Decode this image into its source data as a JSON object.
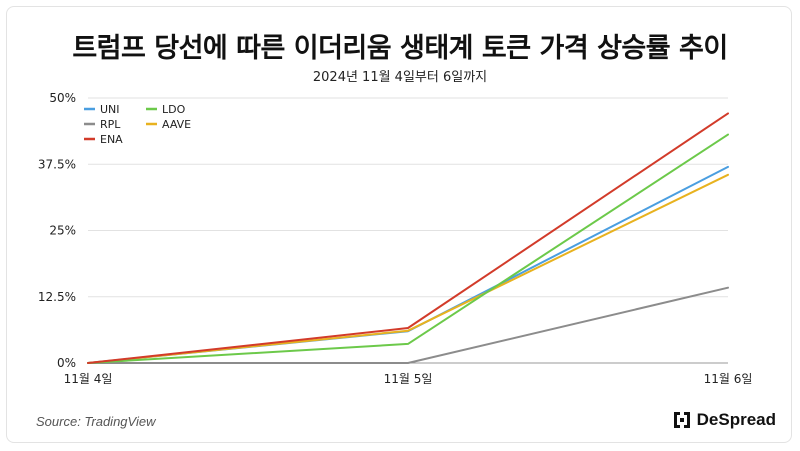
{
  "header": {
    "title": "트럼프 당선에 따른 이더리움 생태계 토큰 가격 상승률 추이",
    "subtitle": "2024년 11월 4일부터 6일까지"
  },
  "footer": {
    "source": "Source: TradingView",
    "brand": "DeSpread"
  },
  "chart_data": {
    "type": "line",
    "categories": [
      "11월 4일",
      "11월 5일",
      "11월 6일"
    ],
    "y_ticks": [
      0,
      12.5,
      25,
      37.5,
      50
    ],
    "y_tick_labels": [
      "0%",
      "12.5%",
      "25%",
      "37.5%",
      "50%"
    ],
    "ylim": [
      0,
      50
    ],
    "grid": true,
    "legend_position": "top-left",
    "series": [
      {
        "name": "UNI",
        "color": "#4a9ee0",
        "values": [
          0,
          6.0,
          37.0
        ]
      },
      {
        "name": "RPL",
        "color": "#8c8c8c",
        "values": [
          0,
          0.0,
          14.2
        ]
      },
      {
        "name": "ENA",
        "color": "#d23b2a",
        "values": [
          0,
          6.6,
          47.1
        ]
      },
      {
        "name": "LDO",
        "color": "#6cc94a",
        "values": [
          0,
          3.6,
          43.1
        ]
      },
      {
        "name": "AAVE",
        "color": "#e8b21f",
        "values": [
          0,
          6.1,
          35.5
        ]
      }
    ]
  }
}
